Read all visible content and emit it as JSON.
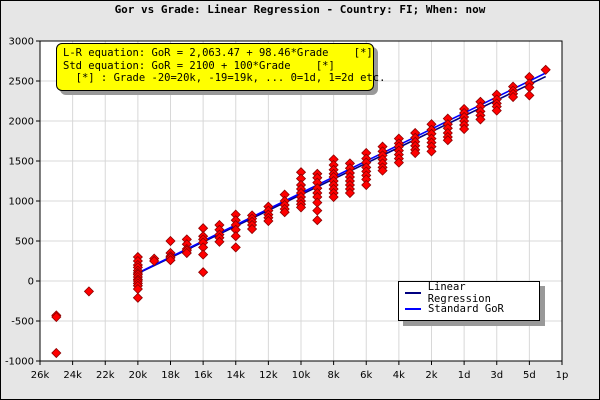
{
  "chart_data": {
    "type": "scatter",
    "title": "Gor vs Grade: Linear Regression - Country: FI; When: now",
    "annotation_lines": [
      "L-R equation: GoR = 2,063.47 + 98.46*Grade    [*]",
      "Std equation: GoR = 2100 + 100*Grade    [*]",
      "  [*] : Grade -20=20k, -19=19k, ... 0=1d, 1=2d etc."
    ],
    "x_tick_labels": [
      "26k",
      "24k",
      "22k",
      "20k",
      "18k",
      "16k",
      "14k",
      "12k",
      "10k",
      "8k",
      "6k",
      "4k",
      "2k",
      "1d",
      "3d",
      "5d",
      "1p"
    ],
    "x_tick_grades": [
      -26,
      -24,
      -22,
      -20,
      -18,
      -16,
      -14,
      -12,
      -10,
      -8,
      -6,
      -4,
      -2,
      0,
      2,
      4,
      6
    ],
    "xlim": [
      -26,
      6
    ],
    "ylim": [
      -1000,
      3000
    ],
    "y_ticks": [
      -1000,
      -500,
      0,
      500,
      1000,
      1500,
      2000,
      2500,
      3000
    ],
    "grid": true,
    "legend_position": "bottom-right",
    "series": [
      {
        "name": "Linear Regression",
        "color": "#000080",
        "intercept": 2063.47,
        "slope": 98.46,
        "x_range": [
          -20,
          5
        ]
      },
      {
        "name": "Standard GoR",
        "color": "#0000ff",
        "intercept": 2100,
        "slope": 100,
        "x_range": [
          -20,
          5
        ]
      }
    ],
    "points_color": "#ff0000",
    "points": [
      [
        -25,
        -430
      ],
      [
        -25,
        -450
      ],
      [
        -25,
        -900
      ],
      [
        -23,
        -130
      ],
      [
        -20,
        300
      ],
      [
        -20,
        250
      ],
      [
        -20,
        200
      ],
      [
        -20,
        170
      ],
      [
        -20,
        130
      ],
      [
        -20,
        100
      ],
      [
        -20,
        80
      ],
      [
        -20,
        50
      ],
      [
        -20,
        20
      ],
      [
        -20,
        0
      ],
      [
        -20,
        -30
      ],
      [
        -20,
        -60
      ],
      [
        -20,
        -100
      ],
      [
        -20,
        -210
      ],
      [
        -19,
        280
      ],
      [
        -19,
        250
      ],
      [
        -18,
        500
      ],
      [
        -18,
        350
      ],
      [
        -18,
        310
      ],
      [
        -18,
        290
      ],
      [
        -18,
        260
      ],
      [
        -17,
        520
      ],
      [
        -17,
        460
      ],
      [
        -17,
        400
      ],
      [
        -17,
        380
      ],
      [
        -17,
        350
      ],
      [
        -16,
        660
      ],
      [
        -16,
        560
      ],
      [
        -16,
        520
      ],
      [
        -16,
        480
      ],
      [
        -16,
        420
      ],
      [
        -16,
        330
      ],
      [
        -16,
        110
      ],
      [
        -15,
        700
      ],
      [
        -15,
        640
      ],
      [
        -15,
        580
      ],
      [
        -15,
        540
      ],
      [
        -15,
        490
      ],
      [
        -14,
        830
      ],
      [
        -14,
        760
      ],
      [
        -14,
        700
      ],
      [
        -14,
        640
      ],
      [
        -14,
        560
      ],
      [
        -14,
        420
      ],
      [
        -13,
        820
      ],
      [
        -13,
        780
      ],
      [
        -13,
        740
      ],
      [
        -13,
        700
      ],
      [
        -13,
        650
      ],
      [
        -12,
        930
      ],
      [
        -12,
        880
      ],
      [
        -12,
        830
      ],
      [
        -12,
        790
      ],
      [
        -12,
        750
      ],
      [
        -11,
        1080
      ],
      [
        -11,
        1000
      ],
      [
        -11,
        950
      ],
      [
        -11,
        900
      ],
      [
        -11,
        860
      ],
      [
        -10,
        1360
      ],
      [
        -10,
        1280
      ],
      [
        -10,
        1200
      ],
      [
        -10,
        1150
      ],
      [
        -10,
        1100
      ],
      [
        -10,
        1050
      ],
      [
        -10,
        1000
      ],
      [
        -10,
        960
      ],
      [
        -10,
        920
      ],
      [
        -9,
        1340
      ],
      [
        -9,
        1290
      ],
      [
        -9,
        1230
      ],
      [
        -9,
        1160
      ],
      [
        -9,
        1100
      ],
      [
        -9,
        1050
      ],
      [
        -9,
        980
      ],
      [
        -9,
        880
      ],
      [
        -9,
        760
      ],
      [
        -8,
        1520
      ],
      [
        -8,
        1450
      ],
      [
        -8,
        1390
      ],
      [
        -8,
        1340
      ],
      [
        -8,
        1300
      ],
      [
        -8,
        1250
      ],
      [
        -8,
        1200
      ],
      [
        -8,
        1150
      ],
      [
        -8,
        1100
      ],
      [
        -8,
        1050
      ],
      [
        -7,
        1470
      ],
      [
        -7,
        1410
      ],
      [
        -7,
        1350
      ],
      [
        -7,
        1300
      ],
      [
        -7,
        1250
      ],
      [
        -7,
        1200
      ],
      [
        -7,
        1150
      ],
      [
        -7,
        1100
      ],
      [
        -6,
        1600
      ],
      [
        -6,
        1530
      ],
      [
        -6,
        1480
      ],
      [
        -6,
        1420
      ],
      [
        -6,
        1370
      ],
      [
        -6,
        1320
      ],
      [
        -6,
        1270
      ],
      [
        -6,
        1200
      ],
      [
        -5,
        1680
      ],
      [
        -5,
        1620
      ],
      [
        -5,
        1570
      ],
      [
        -5,
        1520
      ],
      [
        -5,
        1470
      ],
      [
        -5,
        1420
      ],
      [
        -5,
        1380
      ],
      [
        -4,
        1780
      ],
      [
        -4,
        1720
      ],
      [
        -4,
        1680
      ],
      [
        -4,
        1630
      ],
      [
        -4,
        1580
      ],
      [
        -4,
        1530
      ],
      [
        -4,
        1480
      ],
      [
        -3,
        1850
      ],
      [
        -3,
        1790
      ],
      [
        -3,
        1740
      ],
      [
        -3,
        1690
      ],
      [
        -3,
        1640
      ],
      [
        -3,
        1600
      ],
      [
        -2,
        1960
      ],
      [
        -2,
        1890
      ],
      [
        -2,
        1840
      ],
      [
        -2,
        1780
      ],
      [
        -2,
        1730
      ],
      [
        -2,
        1680
      ],
      [
        -2,
        1620
      ],
      [
        -1,
        2030
      ],
      [
        -1,
        1960
      ],
      [
        -1,
        1910
      ],
      [
        -1,
        1850
      ],
      [
        -1,
        1800
      ],
      [
        -1,
        1760
      ],
      [
        0,
        2150
      ],
      [
        0,
        2100
      ],
      [
        0,
        2050
      ],
      [
        0,
        2000
      ],
      [
        0,
        1950
      ],
      [
        0,
        1900
      ],
      [
        1,
        2240
      ],
      [
        1,
        2180
      ],
      [
        1,
        2120
      ],
      [
        1,
        2070
      ],
      [
        1,
        2020
      ],
      [
        2,
        2330
      ],
      [
        2,
        2270
      ],
      [
        2,
        2220
      ],
      [
        2,
        2180
      ],
      [
        2,
        2130
      ],
      [
        3,
        2430
      ],
      [
        3,
        2380
      ],
      [
        3,
        2340
      ],
      [
        3,
        2300
      ],
      [
        4,
        2550
      ],
      [
        4,
        2470
      ],
      [
        4,
        2420
      ],
      [
        4,
        2320
      ],
      [
        5,
        2640
      ]
    ]
  },
  "legend": {
    "items": [
      "Linear Regression",
      "Standard GoR"
    ]
  }
}
